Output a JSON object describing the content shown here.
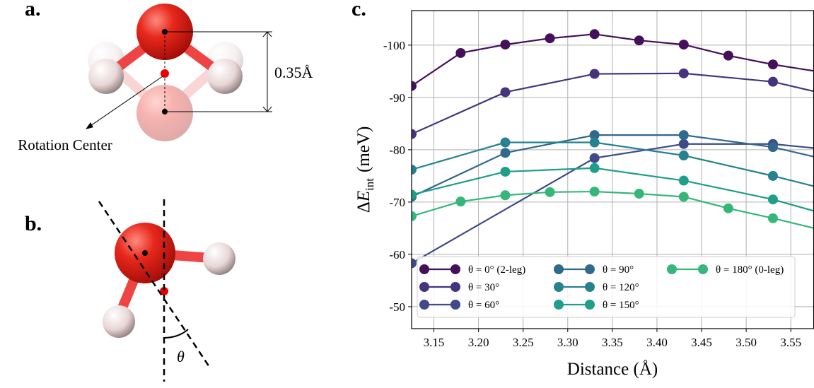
{
  "panels": {
    "a": "a.",
    "b": "b.",
    "c": "c."
  },
  "diagram_a": {
    "dimension_label": "0.35Å",
    "rotation_center_label": "Rotation Center"
  },
  "diagram_b": {
    "angle_label": "θ"
  },
  "chart_data": {
    "type": "line",
    "xlabel": "Distance (Å)",
    "ylabel": {
      "delta": "Δ",
      "symbol": "E",
      "subscript": "int",
      "unit": "(meV)"
    },
    "xlim": [
      3.125,
      3.576
    ],
    "ylim": [
      -45.8,
      -106.6
    ],
    "xticks": [
      3.15,
      {
        "value": 3.2,
        "label": "3.20"
      },
      3.25,
      {
        "value": 3.3,
        "label": "3.30"
      },
      3.35,
      {
        "value": 3.4,
        "label": "3.40"
      },
      3.45,
      {
        "value": 3.5,
        "label": "3.50"
      },
      3.55
    ],
    "yticks": [
      -100,
      -90,
      -80,
      -70,
      -60,
      -50
    ],
    "grid": true,
    "legend": "lower left",
    "legend_columns": 3,
    "series": [
      {
        "name": "θ = 0° (2-leg)",
        "color": "#45105a",
        "x": [
          3.125,
          3.18,
          3.23,
          3.28,
          3.33,
          3.38,
          3.43,
          3.48,
          3.53,
          3.63
        ],
        "values": [
          -92.2,
          -98.5,
          -100.1,
          -101.3,
          -102.1,
          -100.9,
          -100.1,
          -98.0,
          -96.3,
          -93.6
        ]
      },
      {
        "name": "θ = 30°",
        "color": "#46337e",
        "x": [
          3.125,
          3.23,
          3.33,
          3.43,
          3.53,
          3.63
        ],
        "values": [
          -83.0,
          -91.0,
          -94.5,
          -94.6,
          -93.0,
          -89.0
        ]
      },
      {
        "name": "θ = 60°",
        "color": "#3e4a89",
        "x": [
          3.125,
          3.33,
          3.43,
          3.53,
          3.63
        ],
        "values": [
          -58.3,
          -78.4,
          -81.1,
          -81.1,
          -79.4
        ]
      },
      {
        "name": "θ = 90°",
        "color": "#31688e",
        "x": [
          3.125,
          3.23,
          3.33,
          3.43,
          3.53,
          3.63
        ],
        "values": [
          -71.0,
          -79.4,
          -82.8,
          -82.8,
          -80.5,
          -76.5
        ]
      },
      {
        "name": "θ = 120°",
        "color": "#26828e",
        "x": [
          3.125,
          3.23,
          3.33,
          3.43,
          3.53,
          3.63
        ],
        "values": [
          -76.2,
          -81.4,
          -81.4,
          -78.9,
          -75.0,
          -70.7
        ]
      },
      {
        "name": "θ = 150°",
        "color": "#1f9e89",
        "x": [
          3.125,
          3.23,
          3.33,
          3.43,
          3.53,
          3.63
        ],
        "values": [
          -71.4,
          -75.8,
          -76.5,
          -74.1,
          -70.5,
          -65.7
        ]
      },
      {
        "name": "θ = 180° (0-leg)",
        "color": "#35b779",
        "x": [
          3.125,
          3.18,
          3.23,
          3.28,
          3.33,
          3.38,
          3.43,
          3.48,
          3.53,
          3.63
        ],
        "values": [
          -67.3,
          -70.1,
          -71.3,
          -71.9,
          -72.0,
          -71.6,
          -71.0,
          -68.8,
          -66.9,
          -62.8
        ]
      }
    ]
  }
}
